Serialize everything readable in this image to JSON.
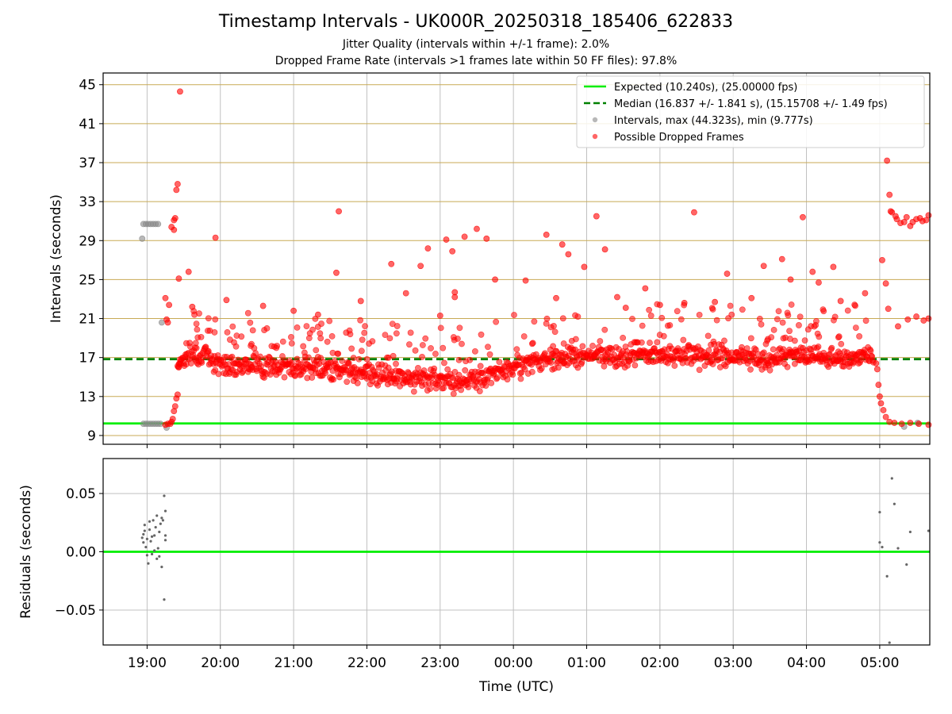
{
  "header": {
    "title": "Timestamp Intervals - UK000R_20250318_185406_622833",
    "subtitle_1": "Jitter Quality (intervals within +/-1 frame): 2.0%",
    "subtitle_2": "Dropped Frame Rate (intervals >1 frames late within 50 FF files): 97.8%"
  },
  "colors": {
    "expected": "#00ee00",
    "median": "#008000",
    "intervals": "#888888",
    "dropped": "#ff0000",
    "hgrid": "#c8aa55",
    "vgrid": "#c0c0c0",
    "residuals": "#666666"
  },
  "chart_data": [
    {
      "type": "scatter",
      "panel": "intervals",
      "xlabel": "",
      "ylabel": "Intervals (seconds)",
      "xlim": [
        "18:24",
        "05:41"
      ],
      "ylim": [
        8.1,
        46.2
      ],
      "yticks": [
        9,
        13,
        17,
        21,
        25,
        29,
        33,
        37,
        41,
        45
      ],
      "xticks": [
        "19:00",
        "20:00",
        "21:00",
        "22:00",
        "23:00",
        "00:00",
        "01:00",
        "02:00",
        "03:00",
        "04:00",
        "05:00"
      ],
      "grid": true,
      "legend_position": "top-right",
      "legend": [
        "Expected (10.240s), (25.00000 fps)",
        "Median (16.837 +/- 1.841 s), (15.15708 +/- 1.49 fps)",
        "Intervals, max (44.323s), min (9.777s)",
        "Possible Dropped Frames"
      ],
      "reference_lines": [
        {
          "name": "Expected (10.240s), (25.00000 fps)",
          "y": 10.24,
          "style": "solid"
        },
        {
          "name": "Median (16.837 +/- 1.841 s), (15.15708 +/- 1.49 fps)",
          "y": 16.837,
          "style": "dashed"
        }
      ],
      "baseline_trend": [
        {
          "t": "19:25",
          "y": 16.5
        },
        {
          "t": "19:35",
          "y": 17.3
        },
        {
          "t": "19:50",
          "y": 17.0
        },
        {
          "t": "20:00",
          "y": 16.4
        },
        {
          "t": "20:30",
          "y": 16.2
        },
        {
          "t": "21:00",
          "y": 15.9
        },
        {
          "t": "21:30",
          "y": 15.8
        },
        {
          "t": "22:00",
          "y": 15.5
        },
        {
          "t": "22:30",
          "y": 14.9
        },
        {
          "t": "23:00",
          "y": 14.8
        },
        {
          "t": "23:30",
          "y": 14.6
        },
        {
          "t": "00:00",
          "y": 16.1
        },
        {
          "t": "00:30",
          "y": 16.9
        },
        {
          "t": "01:00",
          "y": 17.2
        },
        {
          "t": "02:00",
          "y": 17.3
        },
        {
          "t": "03:00",
          "y": 17.1
        },
        {
          "t": "03:30",
          "y": 16.9
        },
        {
          "t": "04:00",
          "y": 17.2
        },
        {
          "t": "04:30",
          "y": 16.9
        },
        {
          "t": "04:55",
          "y": 17.3
        }
      ],
      "intervals_points": [
        {
          "t": "18:56",
          "y": 29.2
        },
        {
          "t": "18:57",
          "y": 30.7
        },
        {
          "t": "18:59",
          "y": 30.7
        },
        {
          "t": "19:01",
          "y": 30.7
        },
        {
          "t": "19:03",
          "y": 30.7
        },
        {
          "t": "19:05",
          "y": 30.7
        },
        {
          "t": "19:07",
          "y": 30.7
        },
        {
          "t": "19:09",
          "y": 30.7
        },
        {
          "t": "18:57",
          "y": 10.2
        },
        {
          "t": "18:59",
          "y": 10.2
        },
        {
          "t": "19:01",
          "y": 10.2
        },
        {
          "t": "19:03",
          "y": 10.2
        },
        {
          "t": "19:05",
          "y": 10.2
        },
        {
          "t": "19:07",
          "y": 10.2
        },
        {
          "t": "19:09",
          "y": 10.2
        },
        {
          "t": "19:11",
          "y": 10.2
        },
        {
          "t": "19:12",
          "y": 20.6
        },
        {
          "t": "19:16",
          "y": 9.8
        },
        {
          "t": "05:20",
          "y": 9.9
        },
        {
          "t": "05:31",
          "y": 10.3
        }
      ],
      "dropped_outliers": [
        {
          "t": "19:27",
          "y": 44.3
        },
        {
          "t": "19:25",
          "y": 34.8
        },
        {
          "t": "19:24",
          "y": 34.2
        },
        {
          "t": "19:23",
          "y": 31.3
        },
        {
          "t": "19:22",
          "y": 31.1
        },
        {
          "t": "19:20",
          "y": 30.4
        },
        {
          "t": "19:22",
          "y": 30.1
        },
        {
          "t": "19:15",
          "y": 23.1
        },
        {
          "t": "19:18",
          "y": 22.4
        },
        {
          "t": "19:26",
          "y": 25.1
        },
        {
          "t": "19:34",
          "y": 25.8
        },
        {
          "t": "19:37",
          "y": 22.2
        },
        {
          "t": "19:16",
          "y": 20.9
        },
        {
          "t": "19:17",
          "y": 20.6
        },
        {
          "t": "19:56",
          "y": 29.3
        },
        {
          "t": "20:05",
          "y": 22.9
        },
        {
          "t": "20:35",
          "y": 22.3
        },
        {
          "t": "21:00",
          "y": 21.8
        },
        {
          "t": "21:20",
          "y": 21.4
        },
        {
          "t": "21:35",
          "y": 25.7
        },
        {
          "t": "21:37",
          "y": 32.0
        },
        {
          "t": "21:55",
          "y": 22.8
        },
        {
          "t": "22:20",
          "y": 26.6
        },
        {
          "t": "22:32",
          "y": 23.6
        },
        {
          "t": "22:44",
          "y": 26.4
        },
        {
          "t": "22:50",
          "y": 28.2
        },
        {
          "t": "23:00",
          "y": 21.3
        },
        {
          "t": "23:05",
          "y": 29.1
        },
        {
          "t": "23:10",
          "y": 27.9
        },
        {
          "t": "23:12",
          "y": 23.7
        },
        {
          "t": "23:12",
          "y": 23.2
        },
        {
          "t": "23:20",
          "y": 29.4
        },
        {
          "t": "23:30",
          "y": 30.2
        },
        {
          "t": "23:38",
          "y": 29.2
        },
        {
          "t": "23:45",
          "y": 25.0
        },
        {
          "t": "00:10",
          "y": 24.9
        },
        {
          "t": "00:27",
          "y": 29.6
        },
        {
          "t": "00:35",
          "y": 23.1
        },
        {
          "t": "00:40",
          "y": 28.6
        },
        {
          "t": "00:45",
          "y": 27.6
        },
        {
          "t": "00:58",
          "y": 26.3
        },
        {
          "t": "01:08",
          "y": 31.5
        },
        {
          "t": "01:15",
          "y": 28.1
        },
        {
          "t": "01:25",
          "y": 23.2
        },
        {
          "t": "01:32",
          "y": 22.1
        },
        {
          "t": "01:48",
          "y": 24.1
        },
        {
          "t": "02:00",
          "y": 22.4
        },
        {
          "t": "02:20",
          "y": 22.6
        },
        {
          "t": "02:28",
          "y": 31.9
        },
        {
          "t": "02:45",
          "y": 22.7
        },
        {
          "t": "02:55",
          "y": 25.6
        },
        {
          "t": "03:15",
          "y": 23.1
        },
        {
          "t": "03:25",
          "y": 26.4
        },
        {
          "t": "03:40",
          "y": 27.1
        },
        {
          "t": "03:47",
          "y": 25.0
        },
        {
          "t": "03:57",
          "y": 31.4
        },
        {
          "t": "04:05",
          "y": 25.8
        },
        {
          "t": "04:10",
          "y": 24.7
        },
        {
          "t": "04:22",
          "y": 26.3
        },
        {
          "t": "04:28",
          "y": 22.8
        },
        {
          "t": "04:48",
          "y": 23.6
        },
        {
          "t": "05:02",
          "y": 27.0
        },
        {
          "t": "05:06",
          "y": 37.2
        },
        {
          "t": "05:08",
          "y": 33.7
        },
        {
          "t": "05:09",
          "y": 32.0
        },
        {
          "t": "05:13",
          "y": 31.5
        },
        {
          "t": "05:20",
          "y": 30.9
        },
        {
          "t": "05:25",
          "y": 30.5
        },
        {
          "t": "05:30",
          "y": 31.2
        },
        {
          "t": "05:35",
          "y": 31.0
        },
        {
          "t": "05:40",
          "y": 31.6
        },
        {
          "t": "05:05",
          "y": 24.6
        },
        {
          "t": "05:07",
          "y": 22.0
        },
        {
          "t": "05:15",
          "y": 20.2
        },
        {
          "t": "05:23",
          "y": 20.9
        },
        {
          "t": "05:30",
          "y": 21.2
        },
        {
          "t": "05:36",
          "y": 20.8
        },
        {
          "t": "05:40",
          "y": 21.0
        }
      ],
      "dropped_transitions": {
        "start": [
          {
            "t": "19:15",
            "y": 10.1
          },
          {
            "t": "19:17",
            "y": 10.2
          },
          {
            "t": "19:19",
            "y": 10.2
          },
          {
            "t": "19:20",
            "y": 10.4
          },
          {
            "t": "19:21",
            "y": 10.7
          },
          {
            "t": "19:22",
            "y": 11.5
          },
          {
            "t": "19:23",
            "y": 12.0
          },
          {
            "t": "19:24",
            "y": 12.8
          },
          {
            "t": "19:25",
            "y": 13.2
          },
          {
            "t": "19:26",
            "y": 16.0
          },
          {
            "t": "19:27",
            "y": 16.8
          }
        ],
        "end": [
          {
            "t": "04:57",
            "y": 16.4
          },
          {
            "t": "04:58",
            "y": 15.8
          },
          {
            "t": "04:59",
            "y": 14.2
          },
          {
            "t": "05:00",
            "y": 13.0
          },
          {
            "t": "05:01",
            "y": 12.3
          },
          {
            "t": "05:03",
            "y": 11.6
          },
          {
            "t": "05:05",
            "y": 10.9
          },
          {
            "t": "05:08",
            "y": 10.4
          },
          {
            "t": "05:12",
            "y": 10.3
          },
          {
            "t": "05:18",
            "y": 10.2
          },
          {
            "t": "05:25",
            "y": 10.3
          },
          {
            "t": "05:32",
            "y": 10.2
          },
          {
            "t": "05:40",
            "y": 10.1
          }
        ],
        "tail_high": [
          {
            "t": "05:10",
            "y": 31.9
          },
          {
            "t": "05:14",
            "y": 31.2
          },
          {
            "t": "05:17",
            "y": 30.8
          },
          {
            "t": "05:22",
            "y": 31.4
          },
          {
            "t": "05:27",
            "y": 30.9
          },
          {
            "t": "05:33",
            "y": 31.3
          },
          {
            "t": "05:38",
            "y": 31.1
          }
        ]
      }
    },
    {
      "type": "scatter",
      "panel": "residuals",
      "xlabel": "Time (UTC)",
      "ylabel": "Residuals (seconds)",
      "xlim": [
        "18:24",
        "05:41"
      ],
      "ylim": [
        -0.08,
        0.08
      ],
      "yticks": [
        -0.05,
        0.0,
        0.05
      ],
      "ytick_labels": [
        "−0.05",
        "0.00",
        "0.05"
      ],
      "xticks": [
        "19:00",
        "20:00",
        "21:00",
        "22:00",
        "23:00",
        "00:00",
        "01:00",
        "02:00",
        "03:00",
        "04:00",
        "05:00"
      ],
      "grid": true,
      "zero_line": {
        "y": 0.0
      },
      "points": [
        {
          "t": "18:56",
          "y": 0.012
        },
        {
          "t": "18:57",
          "y": 0.015
        },
        {
          "t": "18:57",
          "y": 0.008
        },
        {
          "t": "18:58",
          "y": 0.023
        },
        {
          "t": "18:58",
          "y": 0.018
        },
        {
          "t": "18:59",
          "y": 0.004
        },
        {
          "t": "19:00",
          "y": 0.011
        },
        {
          "t": "19:00",
          "y": -0.003
        },
        {
          "t": "19:01",
          "y": -0.01
        },
        {
          "t": "19:02",
          "y": 0.019
        },
        {
          "t": "19:02",
          "y": 0.026
        },
        {
          "t": "19:03",
          "y": 0.009
        },
        {
          "t": "19:04",
          "y": 0.013
        },
        {
          "t": "19:04",
          "y": -0.002
        },
        {
          "t": "19:05",
          "y": 0.027
        },
        {
          "t": "19:06",
          "y": 0.014
        },
        {
          "t": "19:06",
          "y": 0.001
        },
        {
          "t": "19:07",
          "y": 0.021
        },
        {
          "t": "19:08",
          "y": 0.031
        },
        {
          "t": "19:08",
          "y": -0.006
        },
        {
          "t": "19:09",
          "y": 0.003
        },
        {
          "t": "19:10",
          "y": 0.017
        },
        {
          "t": "19:10",
          "y": -0.004
        },
        {
          "t": "19:11",
          "y": 0.024
        },
        {
          "t": "19:12",
          "y": -0.013
        },
        {
          "t": "19:12",
          "y": 0.029
        },
        {
          "t": "19:13",
          "y": 0.027
        },
        {
          "t": "19:14",
          "y": 0.048
        },
        {
          "t": "19:14",
          "y": -0.041
        },
        {
          "t": "19:15",
          "y": 0.035
        },
        {
          "t": "19:15",
          "y": 0.014
        },
        {
          "t": "19:15",
          "y": 0.01
        },
        {
          "t": "05:00",
          "y": 0.034
        },
        {
          "t": "05:00",
          "y": 0.008
        },
        {
          "t": "05:02",
          "y": 0.004
        },
        {
          "t": "05:06",
          "y": -0.021
        },
        {
          "t": "05:08",
          "y": -0.078
        },
        {
          "t": "05:10",
          "y": 0.063
        },
        {
          "t": "05:12",
          "y": 0.041
        },
        {
          "t": "05:15",
          "y": 0.003
        },
        {
          "t": "05:22",
          "y": -0.011
        },
        {
          "t": "05:25",
          "y": 0.017
        },
        {
          "t": "05:40",
          "y": 0.018
        }
      ]
    }
  ]
}
